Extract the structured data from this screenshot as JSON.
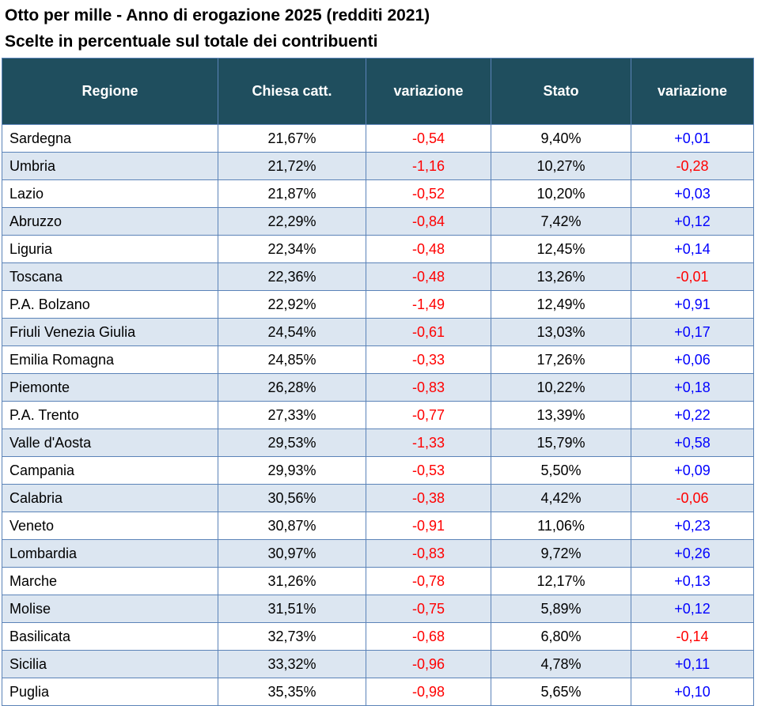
{
  "title": "Otto per mille - Anno di erogazione 2025 (redditi 2021)",
  "subtitle": "Scelte in percentuale sul totale dei contribuenti",
  "colors": {
    "header_bg": "#1F4E5E",
    "header_text": "#FFFFFF",
    "row_bg": "#FFFFFF",
    "row_alt_bg": "#DCE6F1",
    "border": "#5B83B8",
    "negative": "#FF0000",
    "positive": "#0000FF",
    "text": "#000000"
  },
  "chart_data": {
    "type": "table",
    "title": "Otto per mille - Anno di erogazione 2025 (redditi 2021)",
    "subtitle": "Scelte in percentuale sul totale dei contribuenti",
    "columns": [
      "Regione",
      "Chiesa catt.",
      "variazione",
      "Stato",
      "variazione"
    ],
    "rows": [
      [
        "Sardegna",
        "21,67%",
        "-0,54",
        "9,40%",
        "+0,01"
      ],
      [
        "Umbria",
        "21,72%",
        "-1,16",
        "10,27%",
        "-0,28"
      ],
      [
        "Lazio",
        "21,87%",
        "-0,52",
        "10,20%",
        "+0,03"
      ],
      [
        "Abruzzo",
        "22,29%",
        "-0,84",
        "7,42%",
        "+0,12"
      ],
      [
        "Liguria",
        "22,34%",
        "-0,48",
        "12,45%",
        "+0,14"
      ],
      [
        "Toscana",
        "22,36%",
        "-0,48",
        "13,26%",
        "-0,01"
      ],
      [
        "P.A. Bolzano",
        "22,92%",
        "-1,49",
        "12,49%",
        "+0,91"
      ],
      [
        "Friuli Venezia Giulia",
        "24,54%",
        "-0,61",
        "13,03%",
        "+0,17"
      ],
      [
        "Emilia Romagna",
        "24,85%",
        "-0,33",
        "17,26%",
        "+0,06"
      ],
      [
        "Piemonte",
        "26,28%",
        "-0,83",
        "10,22%",
        "+0,18"
      ],
      [
        "P.A. Trento",
        "27,33%",
        "-0,77",
        "13,39%",
        "+0,22"
      ],
      [
        "Valle d'Aosta",
        "29,53%",
        "-1,33",
        "15,79%",
        "+0,58"
      ],
      [
        "Campania",
        "29,93%",
        "-0,53",
        "5,50%",
        "+0,09"
      ],
      [
        "Calabria",
        "30,56%",
        "-0,38",
        "4,42%",
        "-0,06"
      ],
      [
        "Veneto",
        "30,87%",
        "-0,91",
        "11,06%",
        "+0,23"
      ],
      [
        "Lombardia",
        "30,97%",
        "-0,83",
        "9,72%",
        "+0,26"
      ],
      [
        "Marche",
        "31,26%",
        "-0,78",
        "12,17%",
        "+0,13"
      ],
      [
        "Molise",
        "31,51%",
        "-0,75",
        "5,89%",
        "+0,12"
      ],
      [
        "Basilicata",
        "32,73%",
        "-0,68",
        "6,80%",
        "-0,14"
      ],
      [
        "Sicilia",
        "33,32%",
        "-0,96",
        "4,78%",
        "+0,11"
      ],
      [
        "Puglia",
        "35,35%",
        "-0,98",
        "5,65%",
        "+0,10"
      ]
    ]
  }
}
